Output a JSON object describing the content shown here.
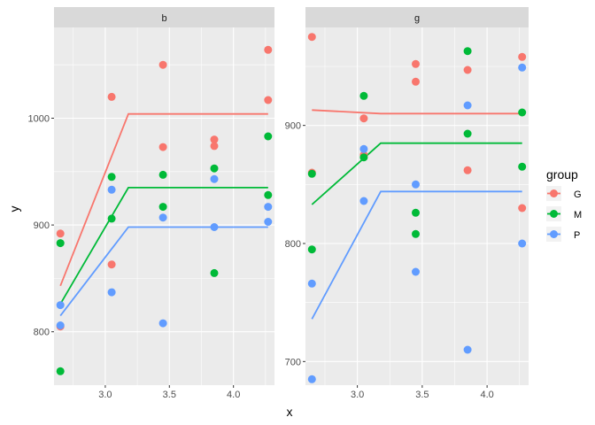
{
  "chart_data": {
    "type": "scatter",
    "xlabel": "x",
    "ylabel": "y",
    "legend": {
      "title": "group",
      "position": "right",
      "entries": [
        {
          "label": "G",
          "color": "#F8766D"
        },
        {
          "label": "M",
          "color": "#00BA38"
        },
        {
          "label": "P",
          "color": "#619CFF"
        }
      ]
    },
    "grid": true,
    "panels": [
      {
        "strip": "b",
        "xlim": [
          2.6,
          4.32
        ],
        "ylim": [
          750,
          1085
        ],
        "x_ticks": [
          3.0,
          3.5,
          4.0
        ],
        "x_tick_labels": [
          "3.0",
          "3.5",
          "4.0"
        ],
        "y_ticks": [
          800,
          900,
          1000
        ],
        "y_tick_labels": [
          "800",
          "900",
          "1000"
        ],
        "series": [
          {
            "name": "G",
            "points": [
              [
                2.65,
                892
              ],
              [
                2.65,
                805
              ],
              [
                3.05,
                1020
              ],
              [
                3.05,
                863
              ],
              [
                3.45,
                1050
              ],
              [
                3.45,
                973
              ],
              [
                3.85,
                980
              ],
              [
                3.85,
                974
              ],
              [
                4.27,
                1064
              ],
              [
                4.27,
                1017
              ]
            ],
            "line": [
              [
                2.65,
                843
              ],
              [
                3.18,
                1004
              ],
              [
                4.27,
                1004
              ]
            ]
          },
          {
            "name": "M",
            "points": [
              [
                2.65,
                883
              ],
              [
                2.65,
                763
              ],
              [
                3.05,
                945
              ],
              [
                3.05,
                906
              ],
              [
                3.45,
                947
              ],
              [
                3.45,
                917
              ],
              [
                3.85,
                953
              ],
              [
                3.85,
                855
              ],
              [
                4.27,
                983
              ],
              [
                4.27,
                928
              ]
            ],
            "line": [
              [
                2.65,
                826
              ],
              [
                3.18,
                935
              ],
              [
                4.27,
                935
              ]
            ]
          },
          {
            "name": "P",
            "points": [
              [
                2.65,
                825
              ],
              [
                2.65,
                806
              ],
              [
                3.05,
                933
              ],
              [
                3.05,
                837
              ],
              [
                3.45,
                907
              ],
              [
                3.45,
                808
              ],
              [
                3.85,
                943
              ],
              [
                3.85,
                898
              ],
              [
                4.27,
                917
              ],
              [
                4.27,
                903
              ]
            ],
            "line": [
              [
                2.65,
                815
              ],
              [
                3.18,
                898
              ],
              [
                4.27,
                898
              ]
            ]
          }
        ]
      },
      {
        "strip": "g",
        "xlim": [
          2.6,
          4.32
        ],
        "ylim": [
          680,
          983
        ],
        "x_ticks": [
          3.0,
          3.5,
          4.0
        ],
        "x_tick_labels": [
          "3.0",
          "3.5",
          "4.0"
        ],
        "y_ticks": [
          700,
          800,
          900
        ],
        "y_tick_labels": [
          "700",
          "800",
          "900"
        ],
        "series": [
          {
            "name": "G",
            "points": [
              [
                2.65,
                975
              ],
              [
                2.65,
                860
              ],
              [
                3.05,
                906
              ],
              [
                3.05,
                875
              ],
              [
                3.45,
                952
              ],
              [
                3.45,
                937
              ],
              [
                3.85,
                947
              ],
              [
                3.85,
                862
              ],
              [
                4.27,
                958
              ],
              [
                4.27,
                830
              ]
            ],
            "line": [
              [
                2.65,
                913
              ],
              [
                3.18,
                910
              ],
              [
                4.27,
                910
              ]
            ]
          },
          {
            "name": "M",
            "points": [
              [
                2.65,
                859
              ],
              [
                2.65,
                795
              ],
              [
                3.05,
                925
              ],
              [
                3.05,
                873
              ],
              [
                3.45,
                826
              ],
              [
                3.45,
                808
              ],
              [
                3.85,
                963
              ],
              [
                3.85,
                893
              ],
              [
                4.27,
                911
              ],
              [
                4.27,
                865
              ]
            ],
            "line": [
              [
                2.65,
                833
              ],
              [
                3.18,
                885
              ],
              [
                4.27,
                885
              ]
            ]
          },
          {
            "name": "P",
            "points": [
              [
                2.65,
                766
              ],
              [
                2.65,
                685
              ],
              [
                3.05,
                880
              ],
              [
                3.05,
                836
              ],
              [
                3.45,
                850
              ],
              [
                3.45,
                776
              ],
              [
                3.85,
                917
              ],
              [
                3.85,
                710
              ],
              [
                4.27,
                949
              ],
              [
                4.27,
                800
              ]
            ],
            "line": [
              [
                2.65,
                736
              ],
              [
                3.18,
                844
              ],
              [
                4.27,
                844
              ]
            ]
          }
        ]
      }
    ]
  }
}
